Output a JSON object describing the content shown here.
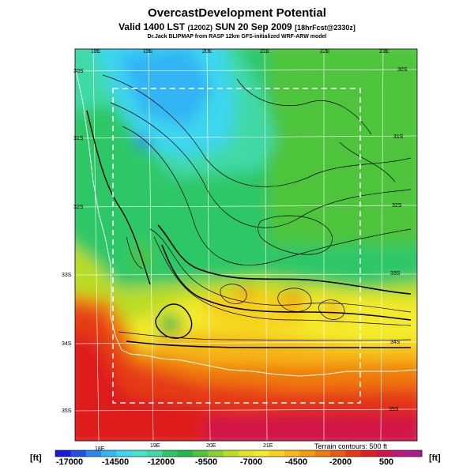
{
  "header": {
    "title": "OvercastDevelopment Potential",
    "subtitle_main": "Valid 1400 LST",
    "subtitle_utc": "(1200Z)",
    "subtitle_date": "SUN 20 Sep 2009",
    "subtitle_fcst": "[18hrFcst@2330z]",
    "credit": "Dr.Jack BLIPMAP from RASP 12km GFS-initialized WRF-ARW model"
  },
  "map": {
    "lon_labels_top": [
      "18E",
      "19E",
      "20E",
      "21E",
      "22E",
      "23E"
    ],
    "lon_labels_bottom": [
      "18E",
      "19E",
      "20E",
      "21E"
    ],
    "lat_labels_left": [
      "30S",
      "31S",
      "32S",
      "33S",
      "34S",
      "35S"
    ],
    "lat_labels_right": [
      "30S",
      "31S",
      "32S",
      "33S",
      "34S",
      "35S"
    ],
    "contour_note": "Terrain contours: 500 ft"
  },
  "colorbar": {
    "unit_left": "[ft]",
    "unit_right": "[ft]",
    "tick_labels": [
      "-17000",
      "-14500",
      "-12000",
      "-9500",
      "-7000",
      "-4500",
      "-2000",
      "500"
    ],
    "colors": [
      "#1a1ad6",
      "#1e50e6",
      "#2c86f0",
      "#33b4f5",
      "#3cd6ee",
      "#44e2cf",
      "#3fd9a6",
      "#2ec768",
      "#23b84a",
      "#4dc43a",
      "#86d22e",
      "#b9dc28",
      "#e2e326",
      "#f3ea29",
      "#f6d21f",
      "#f5b716",
      "#f39a10",
      "#ef7a0e",
      "#ea5a10",
      "#e53a14",
      "#df1f1f",
      "#d11548",
      "#c2177a",
      "#a91b8f"
    ]
  }
}
